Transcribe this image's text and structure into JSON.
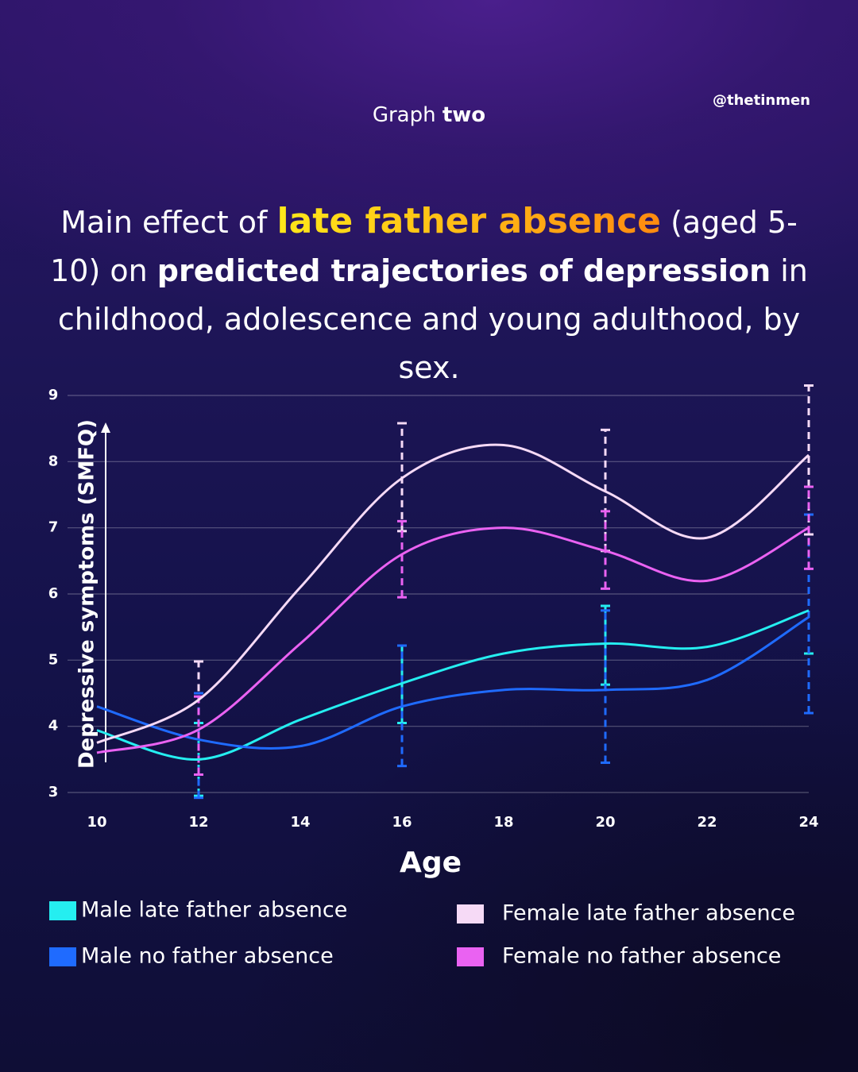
{
  "header": {
    "label": "Graph",
    "label_bold": "two",
    "handle": "@thetinmen"
  },
  "chart_data": {
    "type": "line",
    "title_parts": [
      "Main effect of",
      "late father absence",
      "(aged 5-10) on",
      "predicted trajectories of depression",
      "in childhood, adolescence and young adulthood, by sex."
    ],
    "x_label": "Age",
    "y_label": "Depressive symptoms (SMFQ)",
    "x": [
      10,
      12,
      14,
      16,
      18,
      20,
      22,
      24
    ],
    "xlim": [
      10,
      24
    ],
    "xticks": [
      10,
      12,
      14,
      16,
      18,
      20,
      22,
      24
    ],
    "ylim": [
      3,
      9
    ],
    "yticks": [
      3,
      4,
      5,
      6,
      7,
      8,
      9
    ],
    "grid": true,
    "series": [
      {
        "name": "Male late father absence",
        "color": "#25eef0",
        "values": [
          3.94,
          3.5,
          4.1,
          4.65,
          5.1,
          5.25,
          5.2,
          5.75
        ],
        "lower": [
          null,
          2.95,
          null,
          4.05,
          null,
          4.63,
          null,
          5.1
        ],
        "upper": [
          null,
          4.05,
          null,
          5.22,
          null,
          5.82,
          null,
          7.2
        ]
      },
      {
        "name": "Male no father absence",
        "color": "#1f6bff",
        "values": [
          4.3,
          3.8,
          3.7,
          4.3,
          4.55,
          4.55,
          4.7,
          5.65
        ],
        "lower": [
          null,
          2.92,
          null,
          3.4,
          null,
          3.45,
          null,
          4.2
        ],
        "upper": [
          null,
          4.5,
          null,
          5.22,
          null,
          5.75,
          null,
          7.2
        ]
      },
      {
        "name": "Female late father absence",
        "color": "#f6daf6",
        "values": [
          3.75,
          4.4,
          6.1,
          7.75,
          8.25,
          7.55,
          6.85,
          8.1
        ],
        "lower": [
          null,
          3.27,
          null,
          6.95,
          null,
          6.65,
          null,
          6.9
        ],
        "upper": [
          null,
          4.98,
          null,
          8.58,
          null,
          8.48,
          null,
          9.15
        ]
      },
      {
        "name": "Female no father absence",
        "color": "#ea62f2",
        "values": [
          3.6,
          3.95,
          5.25,
          6.6,
          7.0,
          6.65,
          6.2,
          7.0
        ],
        "lower": [
          null,
          3.27,
          null,
          5.95,
          null,
          6.08,
          null,
          6.38
        ],
        "upper": [
          null,
          4.45,
          null,
          7.1,
          null,
          7.25,
          null,
          7.62
        ]
      }
    ]
  }
}
